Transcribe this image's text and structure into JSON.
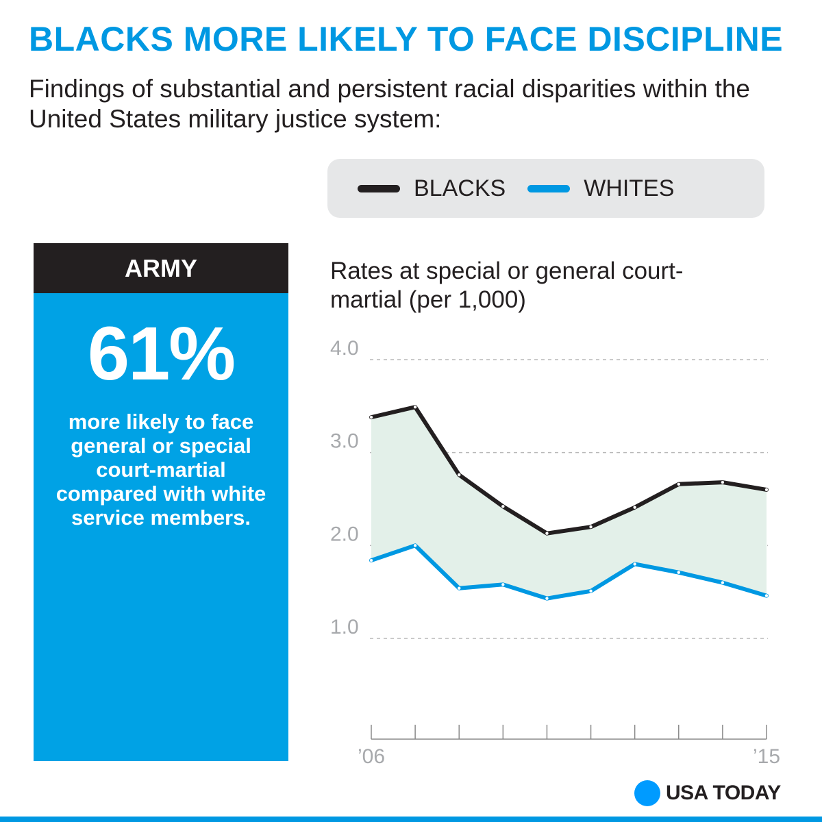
{
  "title": "BLACKS MORE LIKELY TO FACE DISCIPLINE",
  "subtitle": "Findings of substantial and persistent racial disparities within the United States military justice system:",
  "legend": {
    "blacks": "BLACKS",
    "whites": "WHITES"
  },
  "army_panel": {
    "header": "ARMY",
    "stat": "61%",
    "description": "more likely to face general or special court-martial compared with white service members."
  },
  "chart_data": {
    "type": "line",
    "title": "Rates at special or general court-martial (per 1,000)",
    "x": [
      2006,
      2007,
      2008,
      2009,
      2010,
      2011,
      2012,
      2013,
      2014,
      2015
    ],
    "x_tick_labels": [
      "’06",
      "",
      "",
      "",
      "",
      "",
      "",
      "",
      "",
      "’15"
    ],
    "y_ticks": [
      {
        "value": 1.0,
        "label": "1.0"
      },
      {
        "value": 2.0,
        "label": "2.0"
      },
      {
        "value": 3.0,
        "label": "3.0"
      },
      {
        "value": 4.0,
        "label": "4.0"
      }
    ],
    "ylim": [
      0.0,
      4.0
    ],
    "series": [
      {
        "name": "BLACKS",
        "color": "#231f20",
        "values": [
          3.38,
          3.49,
          2.76,
          2.42,
          2.13,
          2.2,
          2.41,
          2.66,
          2.68,
          2.6
        ]
      },
      {
        "name": "WHITES",
        "color": "#0098e2",
        "values": [
          1.84,
          2.0,
          1.54,
          1.58,
          1.43,
          1.51,
          1.8,
          1.71,
          1.6,
          1.46
        ]
      }
    ],
    "fill_between": "#e3f0e9",
    "grid": true
  },
  "logo": "USA TODAY"
}
